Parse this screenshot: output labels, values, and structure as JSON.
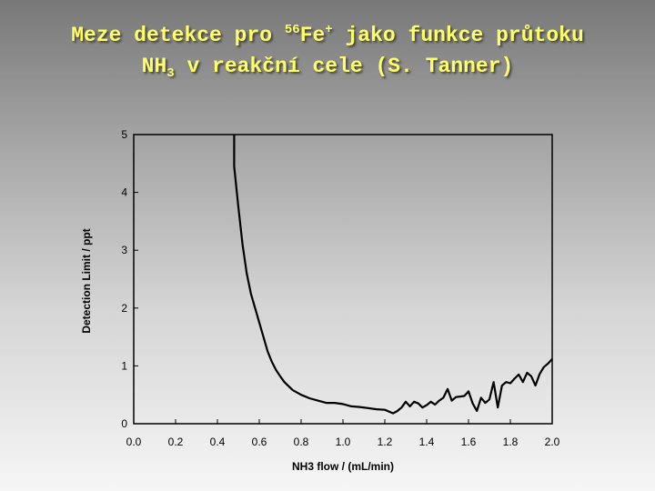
{
  "title": {
    "line1_pre": "Meze detekce pro ",
    "line1_sup": "56",
    "line1_el": "Fe",
    "line1_charge": "+",
    "line1_post": " jako funkce průtoku",
    "line2_pre": "NH",
    "line2_sub": "3",
    "line2_post": " v reakční cele (S. Tanner)"
  },
  "chart_data": {
    "type": "line",
    "xlabel": "NH3 flow / (mL/min)",
    "ylabel": "Detection Limit / ppt",
    "xlim": [
      0,
      2
    ],
    "ylim": [
      0,
      5
    ],
    "xticks": [
      "0.0",
      "0.2",
      "0.4",
      "0.6",
      "0.8",
      "1.0",
      "1.2",
      "1.4",
      "1.6",
      "1.8",
      "2.0"
    ],
    "yticks": [
      "0",
      "1",
      "2",
      "3",
      "4",
      "5"
    ],
    "grid": false,
    "legend": "none",
    "line_color": "#000000",
    "series": [
      {
        "x": [
          0.48,
          0.48,
          0.5,
          0.52,
          0.54,
          0.56,
          0.58,
          0.6,
          0.62,
          0.64,
          0.66,
          0.68,
          0.7,
          0.72,
          0.74,
          0.76,
          0.8,
          0.84,
          0.88,
          0.92,
          0.96,
          1.0,
          1.04,
          1.08,
          1.12,
          1.16,
          1.2,
          1.24,
          1.26,
          1.28,
          1.3,
          1.32,
          1.34,
          1.36,
          1.38,
          1.4,
          1.42,
          1.44,
          1.46,
          1.48,
          1.5,
          1.52,
          1.54,
          1.56,
          1.58,
          1.6,
          1.62,
          1.64,
          1.66,
          1.68,
          1.7,
          1.72,
          1.74,
          1.76,
          1.78,
          1.8,
          1.82,
          1.84,
          1.86,
          1.88,
          1.9,
          1.92,
          1.94,
          1.96,
          1.98,
          2.0
        ],
        "y": [
          5.0,
          4.45,
          3.75,
          3.1,
          2.6,
          2.25,
          2.0,
          1.75,
          1.5,
          1.25,
          1.07,
          0.93,
          0.82,
          0.72,
          0.65,
          0.58,
          0.5,
          0.44,
          0.4,
          0.36,
          0.36,
          0.34,
          0.3,
          0.29,
          0.27,
          0.25,
          0.24,
          0.18,
          0.22,
          0.28,
          0.38,
          0.3,
          0.38,
          0.35,
          0.28,
          0.32,
          0.38,
          0.33,
          0.4,
          0.45,
          0.6,
          0.4,
          0.46,
          0.47,
          0.48,
          0.56,
          0.35,
          0.22,
          0.45,
          0.36,
          0.42,
          0.72,
          0.28,
          0.66,
          0.72,
          0.7,
          0.78,
          0.85,
          0.72,
          0.88,
          0.82,
          0.66,
          0.86,
          0.98,
          1.04,
          1.12
        ]
      }
    ]
  }
}
